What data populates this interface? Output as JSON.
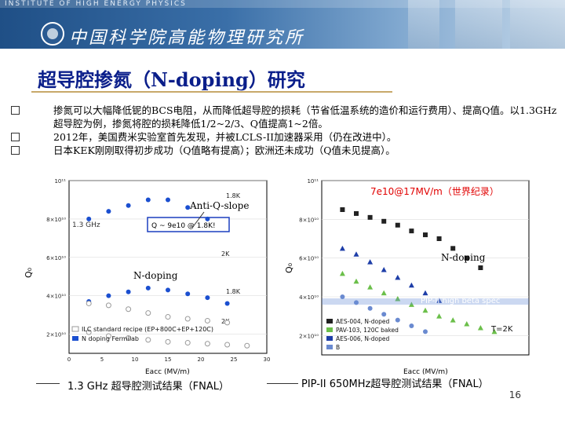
{
  "header": {
    "institute_en": "INSTITUTE OF HIGH ENERGY PHYSICS",
    "institute_cn": "中国科学院高能物理研究所"
  },
  "title": "超导腔掺氮（N-doping）研究",
  "bullets": [
    "掺氮可以大幅降低铌的BCS电阻，从而降低超导腔的损耗（节省低温系统的造价和运行费用）、提高Q值。以1.3GHz超导腔为例，掺氮将腔的损耗降低1/2~2/3、Q值提高1~2倍。",
    "2012年，美国费米实验室首先发现，并被LCLS-II加速器采用（仍在改进中）。",
    "日本KEK刚刚取得初步成功（Q值略有提高）；欧洲还未成功（Q值未见提高）。"
  ],
  "left_figure": {
    "annotation_anti_q": "Anti-Q-slope",
    "annotation_ndoping": "N-doping",
    "freq_label": "1.3 GHz",
    "q_label": "Q ~ 9e10 @ 1.8K!",
    "temp_labels": [
      "1.8K",
      "2K",
      "1.8K",
      "2K"
    ],
    "y_axis_label": "Q₀",
    "x_axis_label": "Eacc (MV/m)",
    "y_ticks": [
      "10¹¹",
      "8×10¹⁰",
      "6×10¹⁰",
      "4×10¹⁰",
      "2×10¹⁰"
    ],
    "x_ticks": [
      "0",
      "5",
      "10",
      "15",
      "20",
      "25",
      "30"
    ],
    "legend": [
      "ILC standard recipe (EP+800C+EP+120C)",
      "N doping Fermilab"
    ],
    "caption": "1.3 GHz 超导腔测试结果（FNAL）"
  },
  "right_figure": {
    "annotation_record": "7e10@17MV/m（世界纪录）",
    "annotation_ndoping": "N-doping",
    "spec_label": "PIP-II high beta spec",
    "temp_label": "T=2K",
    "y_axis_label": "Q₀",
    "x_axis_label": "Eacc (MV/m)",
    "y_ticks": [
      "10¹¹",
      "8×10¹⁰",
      "6×10¹⁰",
      "4×10¹⁰",
      "2×10¹⁰",
      "10¹⁰"
    ],
    "legend": [
      "AES-004, N-doped",
      "PAV-103, 120C baked",
      "AES-006, N-doped",
      "B"
    ],
    "caption": "PIP-II 650MHz超导腔测试结果（FNAL）"
  },
  "page_number": "16",
  "chart_data": [
    {
      "type": "scatter",
      "title": "1.3 GHz",
      "xlabel": "Eacc (MV/m)",
      "ylabel": "Q0",
      "xlim": [
        0,
        30
      ],
      "ylim": [
        10000000000.0,
        100000000000.0
      ],
      "series": [
        {
          "name": "N doping Fermilab 1.8K",
          "x": [
            3,
            6,
            9,
            12,
            15,
            18,
            21
          ],
          "y": [
            80000000000.0,
            84000000000.0,
            87000000000.0,
            90000000000.0,
            90000000000.0,
            86000000000.0,
            80000000000.0
          ]
        },
        {
          "name": "N doping Fermilab 2K",
          "x": [
            3,
            6,
            9,
            12,
            15,
            18,
            21,
            24
          ],
          "y": [
            37000000000.0,
            40000000000.0,
            42000000000.0,
            44000000000.0,
            43000000000.0,
            41000000000.0,
            39000000000.0,
            36000000000.0
          ]
        },
        {
          "name": "ILC standard recipe 1.8K",
          "x": [
            3,
            6,
            9,
            12,
            15,
            18,
            21,
            24
          ],
          "y": [
            36000000000.0,
            35000000000.0,
            33000000000.0,
            31000000000.0,
            29000000000.0,
            28000000000.0,
            27000000000.0,
            26000000000.0
          ]
        },
        {
          "name": "ILC standard recipe 2K",
          "x": [
            3,
            6,
            9,
            12,
            15,
            18,
            21,
            24,
            27
          ],
          "y": [
            21000000000.0,
            19000000000.0,
            18000000000.0,
            17000000000.0,
            16000000000.0,
            15500000000.0,
            15000000000.0,
            14500000000.0,
            14000000000.0
          ]
        }
      ]
    },
    {
      "type": "scatter",
      "title": "PIP-II 650MHz",
      "xlabel": "Eacc (MV/m)",
      "ylabel": "Q0",
      "xlim": [
        0,
        30
      ],
      "ylim": [
        10000000000.0,
        100000000000.0
      ],
      "series": [
        {
          "name": "AES-004, N-doped",
          "x": [
            3,
            5,
            7,
            9,
            11,
            13,
            15,
            17,
            19,
            21,
            23
          ],
          "y": [
            85000000000.0,
            83000000000.0,
            81000000000.0,
            79000000000.0,
            77000000000.0,
            74000000000.0,
            72000000000.0,
            70000000000.0,
            65000000000.0,
            60000000000.0,
            55000000000.0
          ]
        },
        {
          "name": "PAV-103, 120C baked",
          "x": [
            3,
            5,
            7,
            9,
            11,
            13,
            15,
            17,
            19,
            21,
            23,
            25
          ],
          "y": [
            52000000000.0,
            48000000000.0,
            45000000000.0,
            42000000000.0,
            39000000000.0,
            36000000000.0,
            33000000000.0,
            30000000000.0,
            28000000000.0,
            26000000000.0,
            24000000000.0,
            22000000000.0
          ]
        },
        {
          "name": "AES-006, N-doped",
          "x": [
            3,
            5,
            7,
            9,
            11,
            13,
            15,
            17
          ],
          "y": [
            65000000000.0,
            62000000000.0,
            58000000000.0,
            54000000000.0,
            50000000000.0,
            46000000000.0,
            42000000000.0,
            38000000000.0
          ]
        },
        {
          "name": "B",
          "x": [
            3,
            5,
            7,
            9,
            11,
            13,
            15
          ],
          "y": [
            40000000000.0,
            37000000000.0,
            34000000000.0,
            31000000000.0,
            28000000000.0,
            25000000000.0,
            22000000000.0
          ]
        }
      ]
    }
  ]
}
